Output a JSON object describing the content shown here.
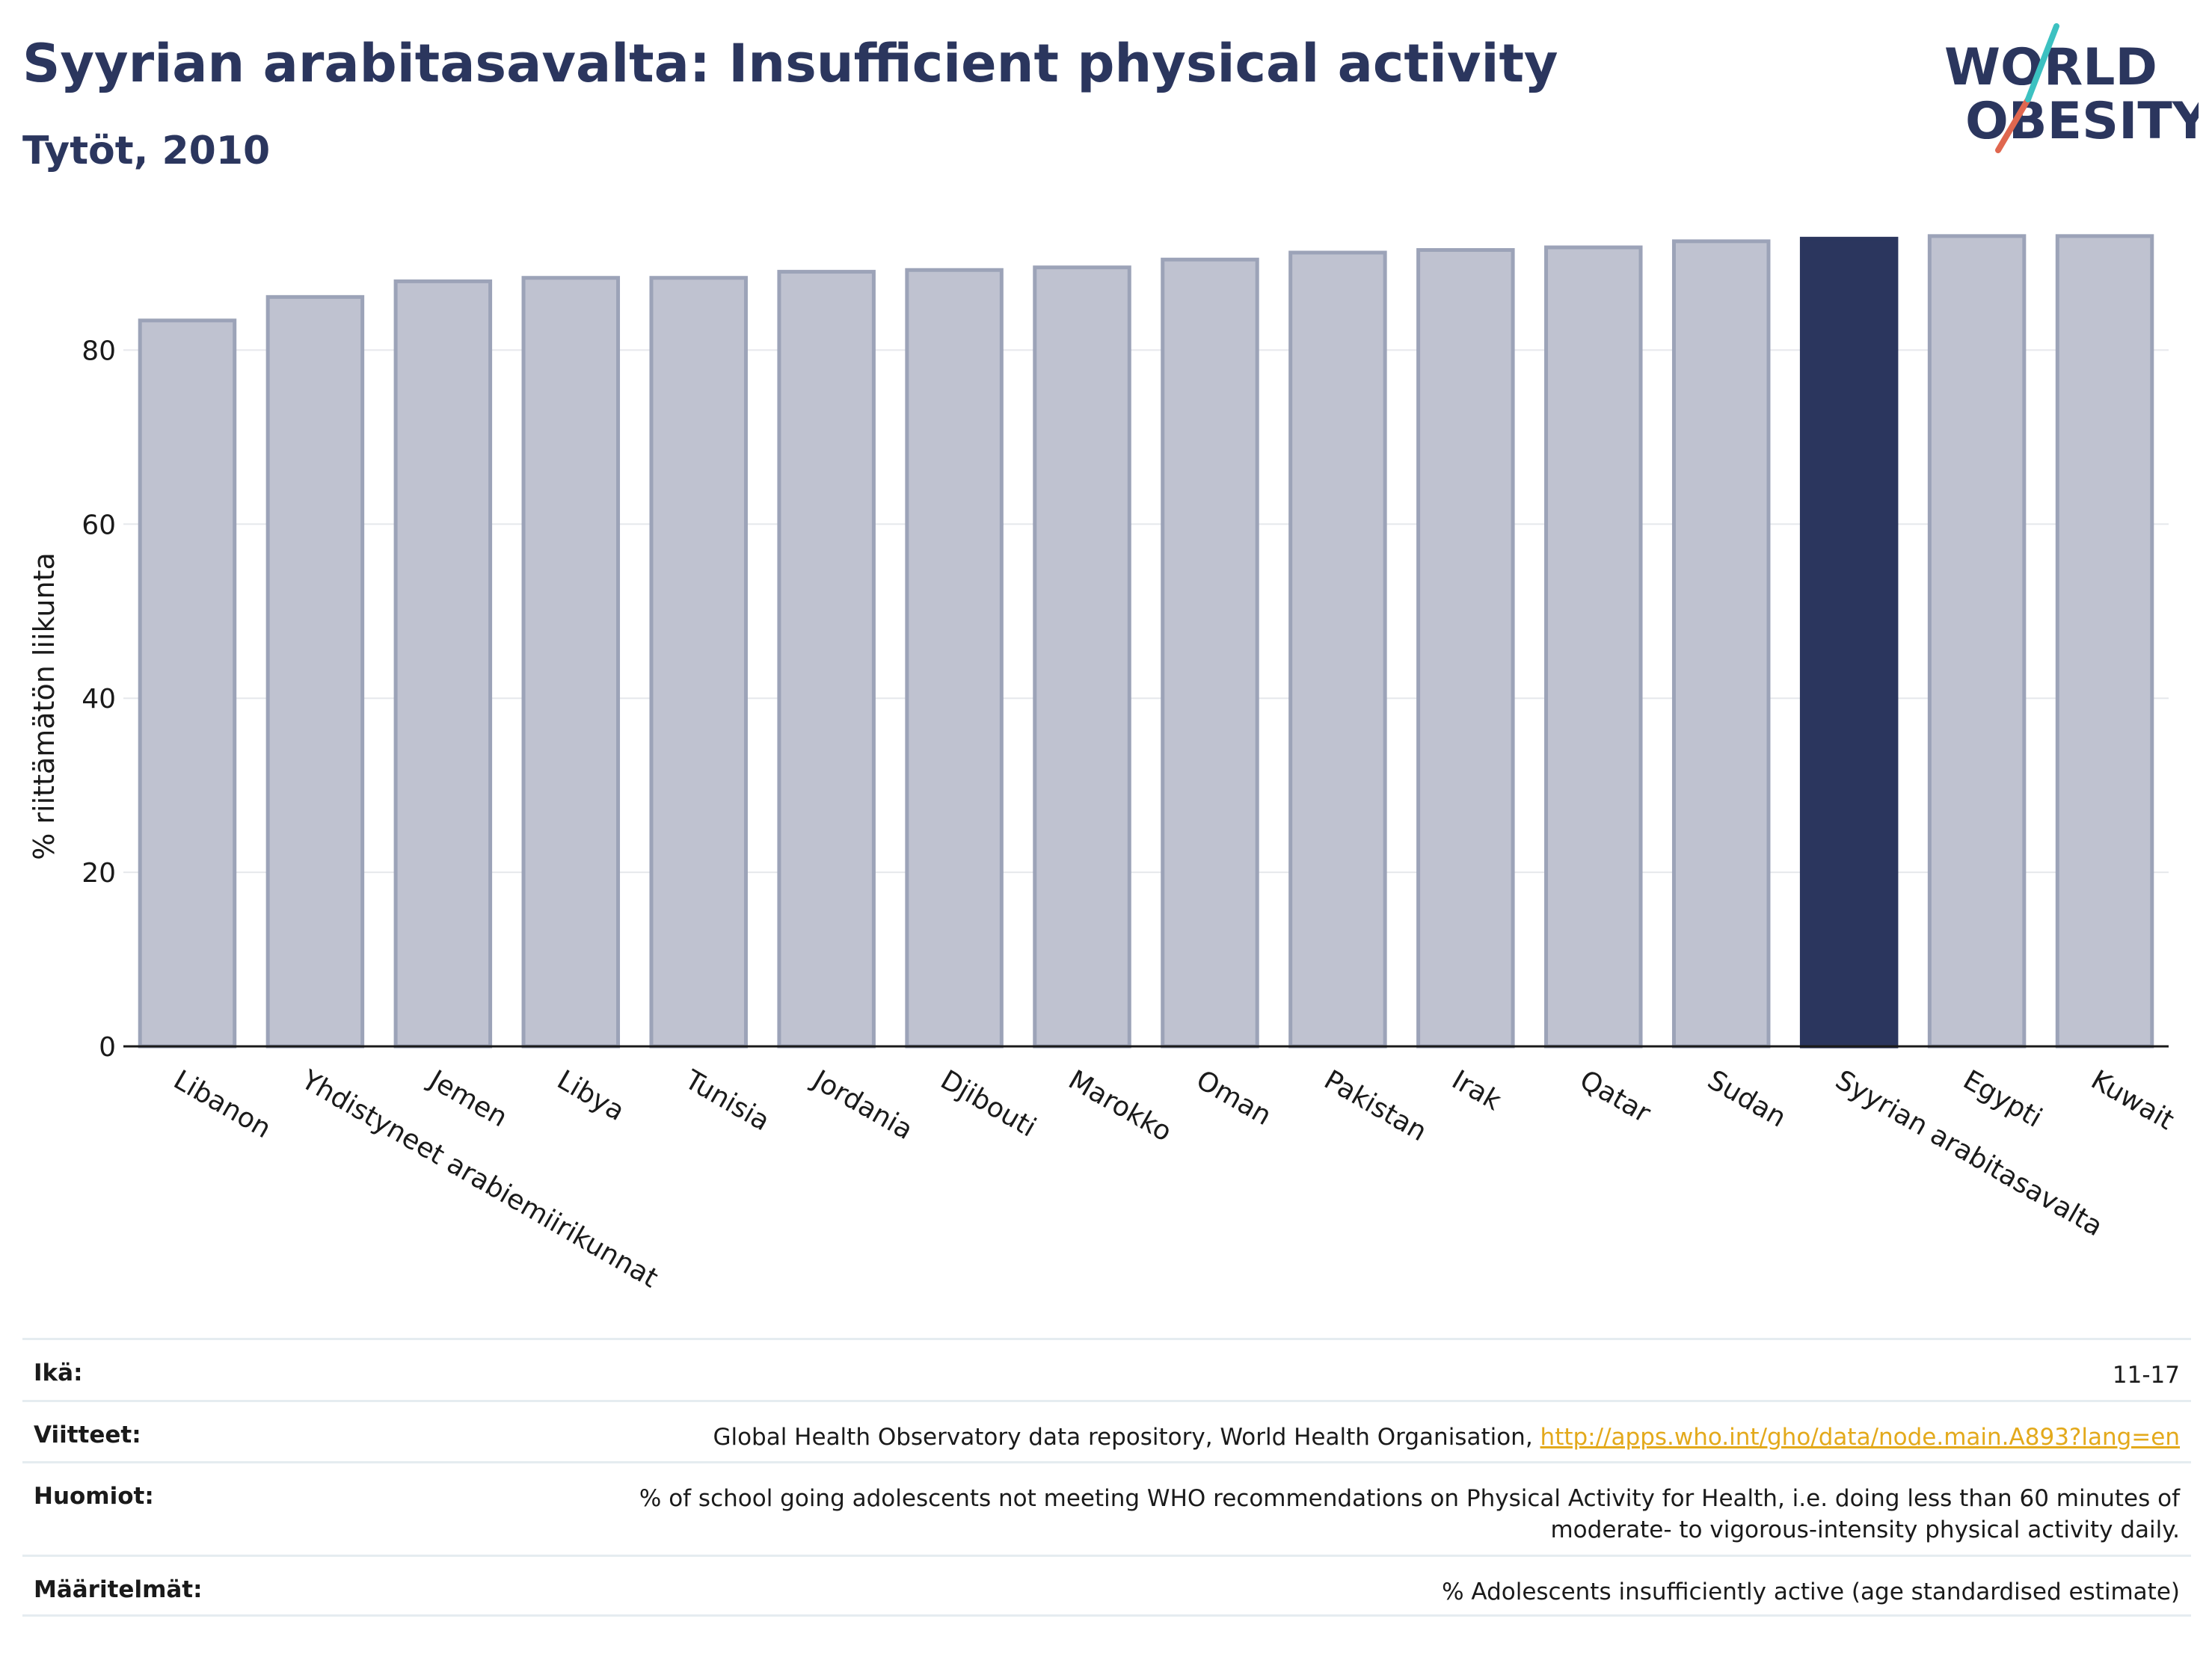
{
  "header": {
    "title": "Syyrian arabitasavalta: Insufficient physical activity",
    "subtitle": "Tytöt, 2010"
  },
  "logo": {
    "line1": "WORLD",
    "line2": "OBESITY"
  },
  "chart_data": {
    "type": "bar",
    "ylabel": "% riittämätön liikunta",
    "ylim": [
      0,
      93
    ],
    "yticks": [
      0,
      20,
      40,
      60,
      80
    ],
    "grid": true,
    "categories": [
      "Libanon",
      "Yhdistyneet arabiemiirikunnat",
      "Jemen",
      "Libya",
      "Tunisia",
      "Jordania",
      "Djibouti",
      "Marokko",
      "Oman",
      "Pakistan",
      "Irak",
      "Qatar",
      "Sudan",
      "Syyrian arabitasavalta",
      "Egypti",
      "Kuwait"
    ],
    "values": [
      83.4,
      86.1,
      87.9,
      88.3,
      88.3,
      89.0,
      89.2,
      89.5,
      90.4,
      91.2,
      91.5,
      91.8,
      92.5,
      92.8,
      93.1,
      93.1
    ],
    "highlight": "Syyrian arabitasavalta",
    "colors": {
      "bar": "#bfc2d0",
      "bar_edge": "#9ca3b8",
      "highlight": "#2b365e"
    }
  },
  "footer": {
    "age_label": "Ikä:",
    "age_value": "11-17",
    "refs_label": "Viitteet:",
    "refs_text": "Global Health Observatory data repository, World Health Organisation,",
    "refs_link": "http://apps.who.int/gho/data/node.main.A893?lang=en",
    "notes_label": "Huomiot:",
    "notes_line1": "% of school going adolescents not meeting WHO recommendations on Physical Activity for Health, i.e. doing less than 60 minutes of",
    "notes_line2": "moderate- to vigorous-intensity physical activity daily.",
    "defs_label": "Määritelmät:",
    "defs_text": "% Adolescents insufficiently active (age standardised estimate)"
  }
}
